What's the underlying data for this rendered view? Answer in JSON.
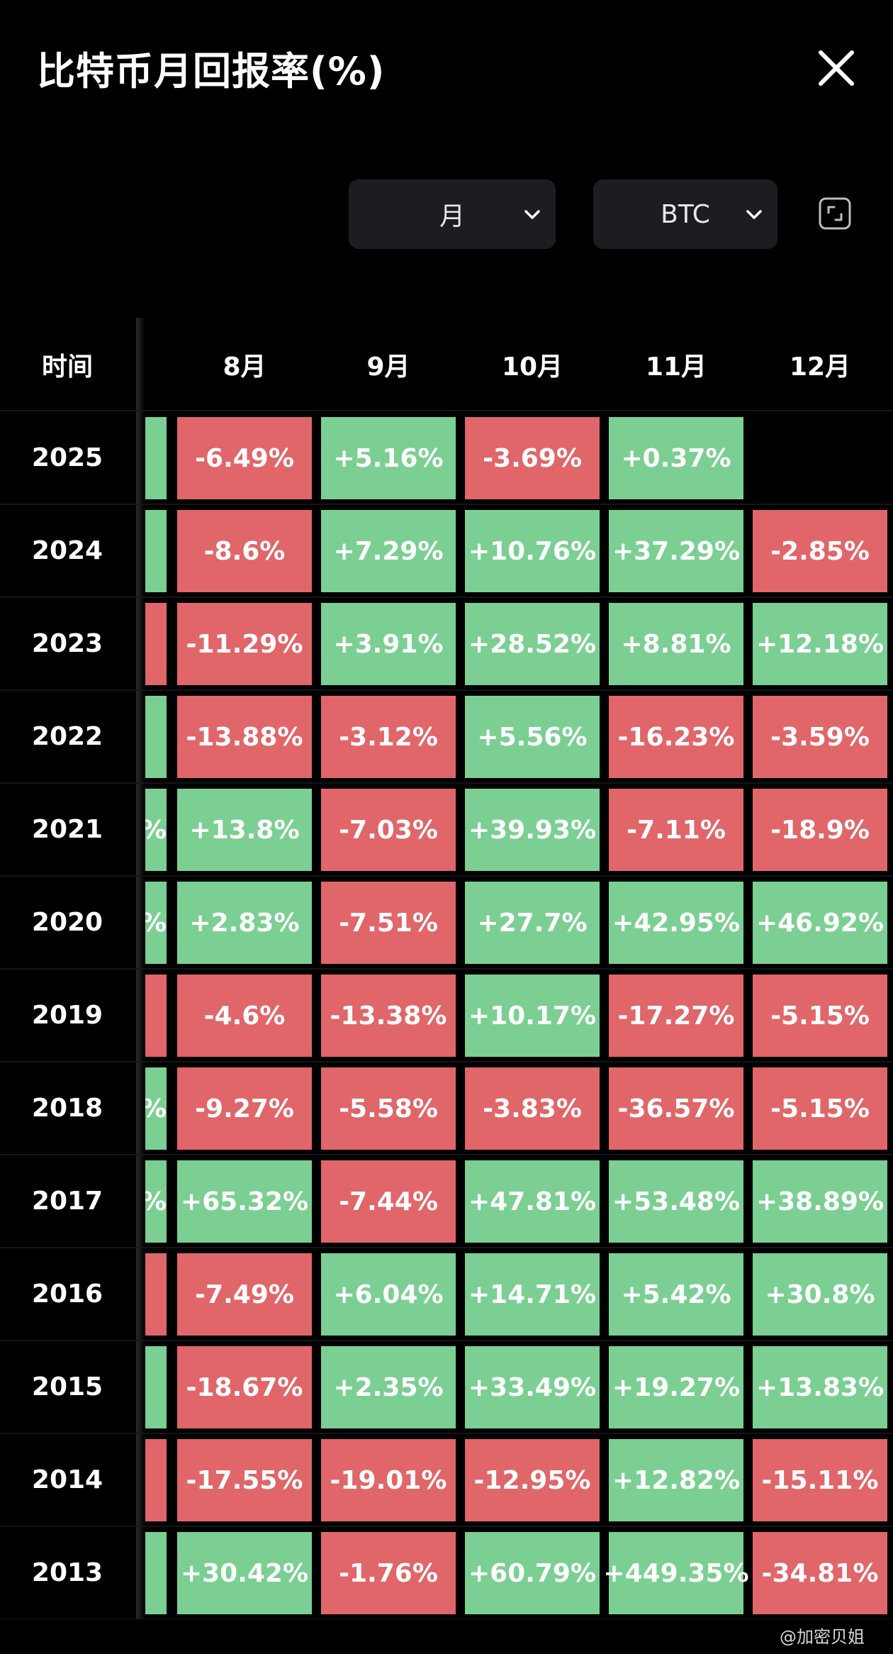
{
  "title": "比特币月回报率(%)",
  "controls": {
    "period": "月",
    "asset": "BTC"
  },
  "colors": {
    "positive": "#7bcf93",
    "negative": "#e0666a",
    "background": "#000000"
  },
  "icons": [
    "close-icon",
    "chevron-down-icon",
    "expand-icon"
  ],
  "table": {
    "time_header": "时间",
    "months": [
      "8月",
      "9月",
      "10月",
      "11月",
      "12月"
    ],
    "rows": [
      {
        "year": "2025",
        "partial": "",
        "partial_sign": "pos",
        "values": [
          "-6.49%",
          "+5.16%",
          "-3.69%",
          "+0.37%",
          ""
        ]
      },
      {
        "year": "2024",
        "partial": "",
        "partial_sign": "pos",
        "values": [
          "-8.6%",
          "+7.29%",
          "+10.76%",
          "+37.29%",
          "-2.85%"
        ]
      },
      {
        "year": "2023",
        "partial": "",
        "partial_sign": "neg",
        "values": [
          "-11.29%",
          "+3.91%",
          "+28.52%",
          "+8.81%",
          "+12.18%"
        ]
      },
      {
        "year": "2022",
        "partial": "",
        "partial_sign": "pos",
        "values": [
          "-13.88%",
          "-3.12%",
          "+5.56%",
          "-16.23%",
          "-3.59%"
        ]
      },
      {
        "year": "2021",
        "partial": "%",
        "partial_sign": "pos",
        "values": [
          "+13.8%",
          "-7.03%",
          "+39.93%",
          "-7.11%",
          "-18.9%"
        ]
      },
      {
        "year": "2020",
        "partial": "%",
        "partial_sign": "pos",
        "values": [
          "+2.83%",
          "-7.51%",
          "+27.7%",
          "+42.95%",
          "+46.92%"
        ]
      },
      {
        "year": "2019",
        "partial": "",
        "partial_sign": "neg",
        "values": [
          "-4.6%",
          "-13.38%",
          "+10.17%",
          "-17.27%",
          "-5.15%"
        ]
      },
      {
        "year": "2018",
        "partial": "%",
        "partial_sign": "pos",
        "values": [
          "-9.27%",
          "-5.58%",
          "-3.83%",
          "-36.57%",
          "-5.15%"
        ]
      },
      {
        "year": "2017",
        "partial": "%",
        "partial_sign": "pos",
        "values": [
          "+65.32%",
          "-7.44%",
          "+47.81%",
          "+53.48%",
          "+38.89%"
        ]
      },
      {
        "year": "2016",
        "partial": "",
        "partial_sign": "neg",
        "values": [
          "-7.49%",
          "+6.04%",
          "+14.71%",
          "+5.42%",
          "+30.8%"
        ]
      },
      {
        "year": "2015",
        "partial": "",
        "partial_sign": "pos",
        "values": [
          "-18.67%",
          "+2.35%",
          "+33.49%",
          "+19.27%",
          "+13.83%"
        ]
      },
      {
        "year": "2014",
        "partial": "",
        "partial_sign": "neg",
        "values": [
          "-17.55%",
          "-19.01%",
          "-12.95%",
          "+12.82%",
          "-15.11%"
        ]
      },
      {
        "year": "2013",
        "partial": "",
        "partial_sign": "pos",
        "values": [
          "+30.42%",
          "-1.76%",
          "+60.79%",
          "+449.35%",
          "-34.81%"
        ]
      }
    ]
  },
  "watermark": "@加密贝姐"
}
